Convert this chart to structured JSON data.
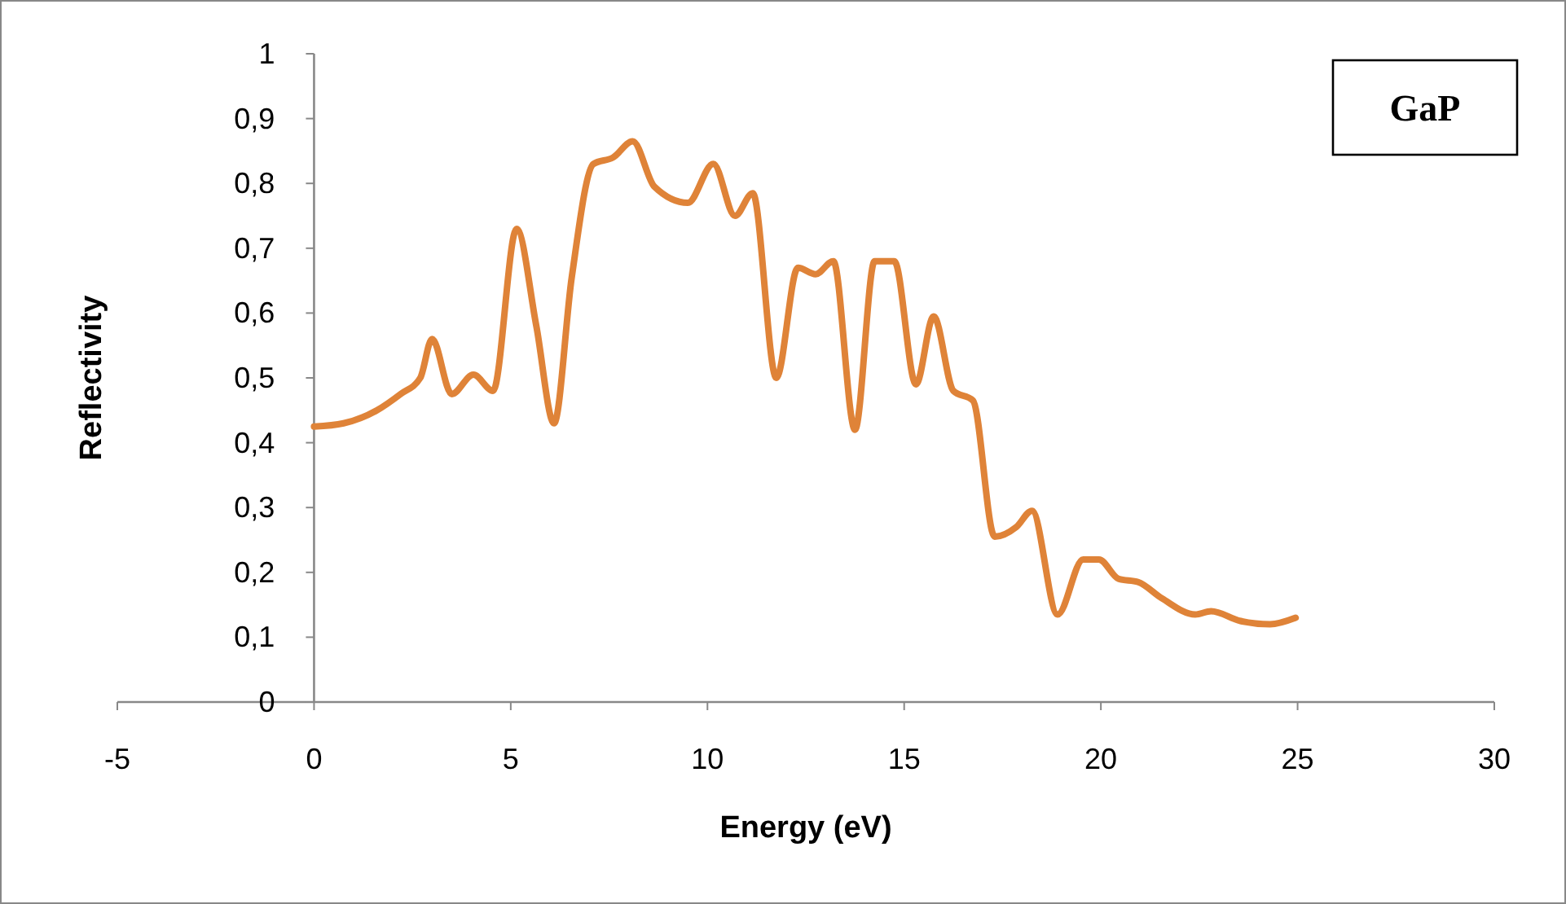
{
  "chart_data": {
    "type": "line",
    "title": "GaP",
    "xlabel": "Energy (eV)",
    "ylabel": "Reflectivity",
    "xlim": [
      -5,
      30
    ],
    "xticks": [
      -5,
      0,
      5,
      10,
      15,
      20,
      25,
      30
    ],
    "ylim": [
      0,
      1
    ],
    "yticks": [
      0,
      {
        "value": 0.1,
        "label": "0,1"
      },
      {
        "value": 0.2,
        "label": "0,2"
      },
      {
        "value": 0.3,
        "label": "0,3"
      },
      {
        "value": 0.4,
        "label": "0,4"
      },
      {
        "value": 0.5,
        "label": "0,5"
      },
      {
        "value": 0.6,
        "label": "0,6"
      },
      {
        "value": 0.7,
        "label": "0,7"
      },
      {
        "value": 0.8,
        "label": "0,8"
      },
      {
        "value": 0.9,
        "label": "0,9"
      },
      1
    ],
    "grid": false,
    "marker": "none",
    "line_style": "solid",
    "series": [
      {
        "color": "#df8338",
        "x": [
          0,
          0.75,
          1.6,
          2.2,
          2.7,
          3.0,
          3.5,
          4.05,
          4.55,
          5.15,
          5.65,
          6.1,
          6.55,
          7.1,
          7.6,
          8.1,
          8.65,
          9.5,
          10.15,
          10.7,
          11.15,
          11.75,
          12.3,
          12.75,
          13.2,
          13.75,
          14.25,
          14.75,
          15.3,
          15.75,
          16.25,
          16.75,
          17.3,
          17.85,
          18.25,
          18.9,
          19.55,
          19.95,
          20.45,
          20.95,
          21.55,
          22.4,
          22.8,
          23.55,
          24.3,
          24.95
        ],
        "values": [
          0.425,
          0.43,
          0.45,
          0.475,
          0.5,
          0.56,
          0.475,
          0.505,
          0.48,
          0.73,
          0.58,
          0.43,
          0.655,
          0.83,
          0.84,
          0.865,
          0.795,
          0.77,
          0.83,
          0.75,
          0.785,
          0.5,
          0.67,
          0.66,
          0.68,
          0.42,
          0.68,
          0.68,
          0.49,
          0.595,
          0.48,
          0.465,
          0.255,
          0.27,
          0.295,
          0.135,
          0.22,
          0.22,
          0.19,
          0.185,
          0.16,
          0.135,
          0.14,
          0.125,
          0.12,
          0.13
        ]
      }
    ]
  }
}
